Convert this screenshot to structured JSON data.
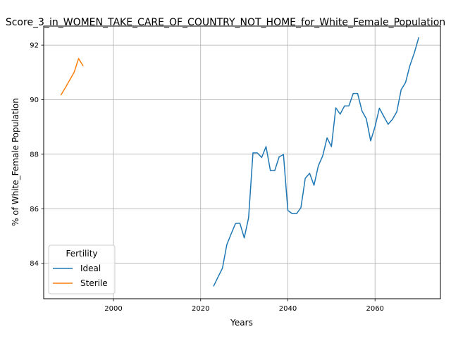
{
  "chart_data": {
    "type": "line",
    "title": "Score_3_in_WOMEN_TAKE_CARE_OF_COUNTRY_NOT_HOME_for_White_Female_Population",
    "xlabel": "Years",
    "ylabel": "% of White_Female Population",
    "xlim": [
      1984,
      2075
    ],
    "ylim": [
      82.7,
      92.7
    ],
    "xticks": [
      2000,
      2020,
      2040,
      2060
    ],
    "yticks": [
      84,
      86,
      88,
      90,
      92
    ],
    "grid": true,
    "legend": {
      "title": "Fertility",
      "position": "lower left",
      "entries": [
        "Ideal",
        "Sterile"
      ]
    },
    "series": [
      {
        "name": "Ideal",
        "color": "#1f77b4",
        "x": [
          2023,
          2024,
          2025,
          2026,
          2027,
          2028,
          2029,
          2030,
          2031,
          2032,
          2033,
          2034,
          2035,
          2036,
          2037,
          2038,
          2039,
          2040,
          2041,
          2042,
          2043,
          2044,
          2045,
          2046,
          2047,
          2048,
          2049,
          2050,
          2051,
          2052,
          2053,
          2054,
          2055,
          2056,
          2057,
          2058,
          2059,
          2060,
          2061,
          2062,
          2063,
          2064,
          2065,
          2066,
          2067,
          2068,
          2069,
          2070
        ],
        "y": [
          83.17,
          83.5,
          83.82,
          84.68,
          85.08,
          85.46,
          85.47,
          84.93,
          85.67,
          88.05,
          88.05,
          87.88,
          88.28,
          87.4,
          87.4,
          87.9,
          87.99,
          85.94,
          85.82,
          85.82,
          86.04,
          87.12,
          87.3,
          86.86,
          87.58,
          87.94,
          88.6,
          88.28,
          89.7,
          89.47,
          89.77,
          89.77,
          90.23,
          90.23,
          89.59,
          89.3,
          88.49,
          89.01,
          89.69,
          89.39,
          89.1,
          89.28,
          89.56,
          90.37,
          90.63,
          91.25,
          91.71,
          92.27
        ]
      },
      {
        "name": "Sterile",
        "color": "#ff7f0e",
        "x": [
          1988,
          1989,
          1990,
          1991,
          1992,
          1993
        ],
        "y": [
          90.18,
          90.45,
          90.73,
          91.01,
          91.51,
          91.25
        ]
      }
    ]
  }
}
